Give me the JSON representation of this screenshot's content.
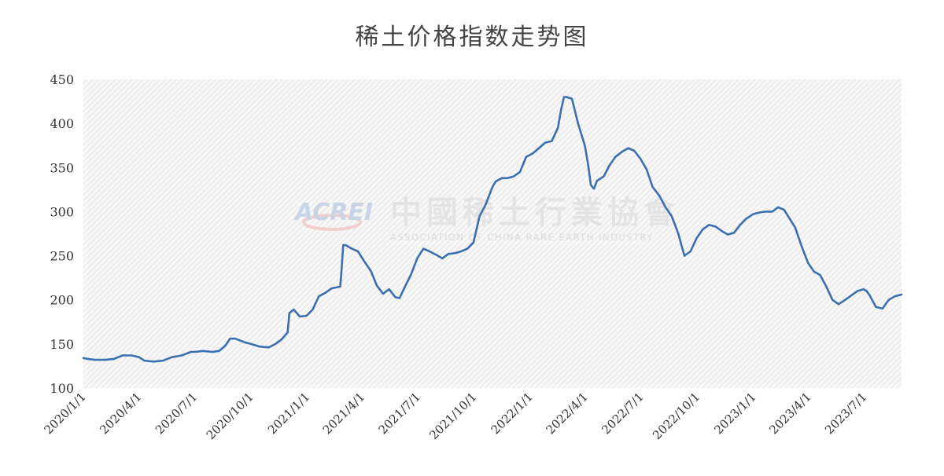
{
  "watermark": {
    "logo_text": "ACREI",
    "name_cn": "中國稀土行業協會",
    "name_en": "ASSOCIATION OF CHINA RARE EARTH INDUSTRY"
  },
  "chart_data": {
    "type": "line",
    "title": "稀土价格指数走势图",
    "xlabel": "",
    "ylabel": "",
    "ylim": [
      100,
      450
    ],
    "xlim": [
      "2020/1/1",
      "2023/8/31"
    ],
    "yticks": [
      100,
      150,
      200,
      250,
      300,
      350,
      400,
      450
    ],
    "xticks": [
      "2020/1/1",
      "2020/4/1",
      "2020/7/1",
      "2020/10/1",
      "2021/1/1",
      "2021/4/1",
      "2021/7/1",
      "2021/10/1",
      "2022/1/1",
      "2022/4/1",
      "2022/7/1",
      "2022/10/1",
      "2023/1/1",
      "2023/4/1",
      "2023/7/1"
    ],
    "grid": false,
    "background": "hatched light gray",
    "colors": {
      "line": "#3a6fb0"
    },
    "series": [
      {
        "x": [
          "2020/1/1",
          "2020/1/8",
          "2020/1/20",
          "2020/2/6",
          "2020/2/20",
          "2020/3/5",
          "2020/3/20",
          "2020/4/1",
          "2020/4/10",
          "2020/4/25",
          "2020/5/10",
          "2020/5/25",
          "2020/6/10",
          "2020/6/25",
          "2020/7/1",
          "2020/7/15",
          "2020/7/30",
          "2020/8/10",
          "2020/8/20",
          "2020/8/28",
          "2020/9/5",
          "2020/9/20",
          "2020/10/1",
          "2020/10/15",
          "2020/10/30",
          "2020/11/10",
          "2020/11/20",
          "2020/11/30",
          "2020/12/3",
          "2020/12/10",
          "2020/12/20",
          "2020/12/31",
          "2021/1/10",
          "2021/1/20",
          "2021/1/31",
          "2021/2/10",
          "2021/2/24",
          "2021/2/26",
          "2021/3/1",
          "2021/3/5",
          "2021/3/15",
          "2021/3/25",
          "2021/4/5",
          "2021/4/15",
          "2021/4/25",
          "2021/5/5",
          "2021/5/15",
          "2021/5/25",
          "2021/6/1",
          "2021/6/10",
          "2021/6/20",
          "2021/6/30",
          "2021/7/10",
          "2021/7/20",
          "2021/7/31",
          "2021/8/10",
          "2021/8/20",
          "2021/8/31",
          "2021/9/10",
          "2021/9/20",
          "2021/9/30",
          "2021/10/10",
          "2021/10/20",
          "2021/10/31",
          "2021/11/5",
          "2021/11/15",
          "2021/11/25",
          "2021/12/5",
          "2021/12/15",
          "2021/12/25",
          "2022/1/5",
          "2022/1/15",
          "2022/1/25",
          "2022/2/5",
          "2022/2/15",
          "2022/2/20",
          "2022/2/25",
          "2022/3/1",
          "2022/3/10",
          "2022/3/20",
          "2022/3/31",
          "2022/4/5",
          "2022/4/10",
          "2022/4/15",
          "2022/4/20",
          "2022/5/1",
          "2022/5/10",
          "2022/5/20",
          "2022/5/31",
          "2022/6/10",
          "2022/6/20",
          "2022/6/30",
          "2022/7/10",
          "2022/7/20",
          "2022/7/31",
          "2022/8/10",
          "2022/8/20",
          "2022/8/31",
          "2022/9/5",
          "2022/9/10",
          "2022/9/20",
          "2022/9/30",
          "2022/10/10",
          "2022/10/20",
          "2022/10/31",
          "2022/11/10",
          "2022/11/20",
          "2022/11/30",
          "2022/12/10",
          "2022/12/20",
          "2022/12/31",
          "2023/1/10",
          "2023/1/20",
          "2023/2/1",
          "2023/2/10",
          "2023/2/20",
          "2023/3/1",
          "2023/3/10",
          "2023/3/20",
          "2023/3/31",
          "2023/4/10",
          "2023/4/20",
          "2023/4/30",
          "2023/5/10",
          "2023/5/20",
          "2023/5/31",
          "2023/6/10",
          "2023/6/20",
          "2023/6/30",
          "2023/7/5",
          "2023/7/10",
          "2023/7/20",
          "2023/7/31",
          "2023/8/10",
          "2023/8/20",
          "2023/8/31"
        ],
        "values": [
          134,
          133,
          132,
          132,
          133,
          137,
          137,
          135,
          131,
          130,
          131,
          135,
          137,
          141,
          141,
          142,
          141,
          142,
          148,
          156,
          156,
          152,
          150,
          147,
          146,
          150,
          155,
          163,
          185,
          189,
          181,
          182,
          189,
          204,
          208,
          213,
          215,
          232,
          262,
          262,
          258,
          255,
          243,
          233,
          216,
          207,
          212,
          203,
          202,
          215,
          229,
          247,
          258,
          255,
          251,
          247,
          252,
          253,
          255,
          258,
          265,
          295,
          308,
          328,
          334,
          338,
          338,
          340,
          345,
          362,
          366,
          372,
          378,
          380,
          395,
          415,
          430,
          430,
          428,
          400,
          375,
          355,
          330,
          326,
          335,
          340,
          352,
          362,
          368,
          372,
          369,
          360,
          348,
          328,
          318,
          305,
          295,
          275,
          262,
          250,
          255,
          270,
          280,
          285,
          283,
          278,
          274,
          276,
          285,
          292,
          297,
          299,
          300,
          300,
          305,
          302,
          292,
          282,
          262,
          242,
          232,
          228,
          215,
          200,
          195,
          200,
          205,
          210,
          212,
          210,
          205,
          192,
          190,
          200,
          204,
          206
        ]
      }
    ]
  }
}
